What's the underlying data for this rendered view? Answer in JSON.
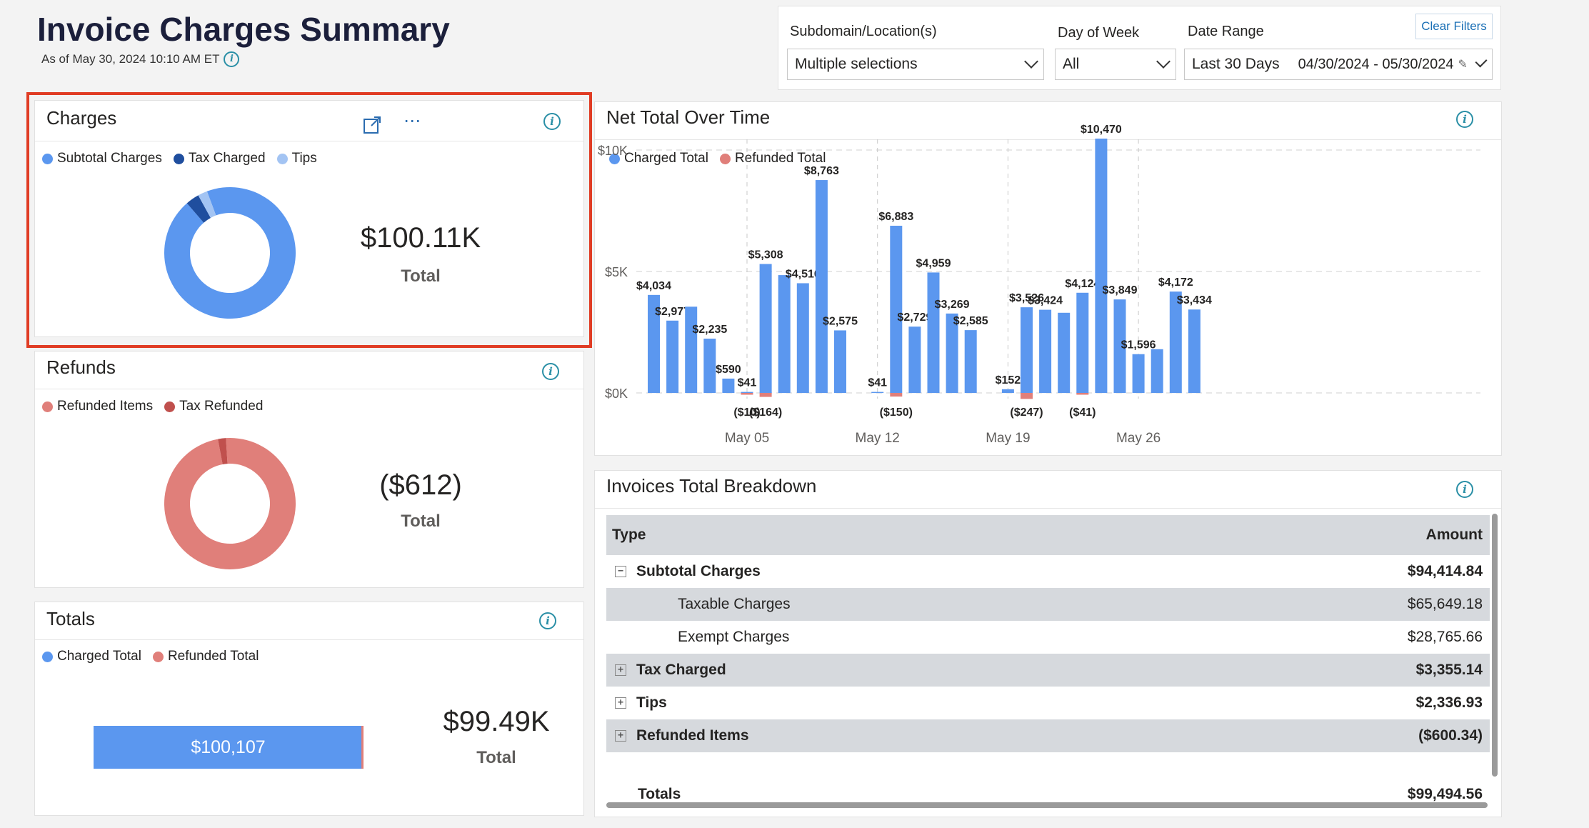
{
  "header": {
    "title": "Invoice Charges Summary",
    "as_of": "As of May 30, 2024 10:10 AM ET"
  },
  "filters": {
    "subdomain_label": "Subdomain/Location(s)",
    "subdomain_value": "Multiple selections",
    "dow_label": "Day of Week",
    "dow_value": "All",
    "date_label": "Date Range",
    "date_preset": "Last 30 Days",
    "date_range": "04/30/2024 - 05/30/2024",
    "clear_label": "Clear Filters"
  },
  "charges_card": {
    "title": "Charges",
    "legend": [
      "Subtotal Charges",
      "Tax Charged",
      "Tips"
    ],
    "value": "$100.11K",
    "value_label": "Total",
    "colors": [
      "#5b97ef",
      "#1f4e9e",
      "#a3c4f3"
    ]
  },
  "refunds_card": {
    "title": "Refunds",
    "legend": [
      "Refunded Items",
      "Tax Refunded"
    ],
    "value": "($612)",
    "value_label": "Total",
    "colors": [
      "#e07f7a",
      "#c0504d"
    ]
  },
  "totals_card": {
    "title": "Totals",
    "legend": [
      "Charged Total",
      "Refunded Total"
    ],
    "bar_label": "$100,107",
    "value": "$99.49K",
    "value_label": "Total"
  },
  "net_total_card": {
    "title": "Net Total Over Time",
    "legend": [
      "Charged Total",
      "Refunded Total"
    ]
  },
  "breakdown": {
    "title": "Invoices Total Breakdown",
    "col_type": "Type",
    "col_amount": "Amount",
    "rows": [
      {
        "label": "Subtotal Charges",
        "amount": "$94,414.84",
        "bold": true,
        "expander": "−",
        "indent": false
      },
      {
        "label": "Taxable Charges",
        "amount": "$65,649.18",
        "bold": false,
        "expander": "",
        "indent": true
      },
      {
        "label": "Exempt Charges",
        "amount": "$28,765.66",
        "bold": false,
        "expander": "",
        "indent": true
      },
      {
        "label": "Tax Charged",
        "amount": "$3,355.14",
        "bold": true,
        "expander": "+",
        "indent": false
      },
      {
        "label": "Tips",
        "amount": "$2,336.93",
        "bold": true,
        "expander": "+",
        "indent": false
      },
      {
        "label": "Refunded Items",
        "amount": "($600.34)",
        "bold": true,
        "expander": "+",
        "indent": false
      }
    ],
    "totals_label": "Totals",
    "totals_amount": "$99,494.56"
  },
  "chart_data": [
    {
      "type": "pie",
      "title": "Charges",
      "labels": [
        "Subtotal Charges",
        "Tax Charged",
        "Tips"
      ],
      "values": [
        94414.84,
        3355.14,
        2336.93
      ],
      "donut": true
    },
    {
      "type": "pie",
      "title": "Refunds",
      "labels": [
        "Refunded Items",
        "Tax Refunded"
      ],
      "values": [
        600.34,
        12.01
      ],
      "donut": true
    },
    {
      "type": "bar",
      "title": "Net Total Over Time",
      "ylabel": "",
      "ylim": [
        -1000,
        11500
      ],
      "yticks": [
        "$0K",
        "$5K",
        "$10K"
      ],
      "xticks": [
        "May 05",
        "May 12",
        "May 19",
        "May 26"
      ],
      "x": [
        "Apr 30",
        "May 01",
        "May 02",
        "May 03",
        "May 04",
        "May 05",
        "May 06",
        "May 07",
        "May 08",
        "May 09",
        "May 10",
        "May 11",
        "May 12",
        "May 13",
        "May 14",
        "May 15",
        "May 16",
        "May 17",
        "May 18",
        "May 19",
        "May 20",
        "May 21",
        "May 22",
        "May 23",
        "May 24",
        "May 25",
        "May 26",
        "May 27",
        "May 28",
        "May 29"
      ],
      "series": [
        {
          "name": "Charged Total",
          "color": "#5b97ef",
          "values": [
            4034,
            2977,
            3550,
            2235,
            590,
            41,
            5308,
            4850,
            4516,
            8763,
            2575,
            0,
            41,
            6883,
            2729,
            4959,
            3269,
            2585,
            0,
            152,
            3526,
            3424,
            3300,
            4124,
            10470,
            3849,
            1596,
            1800,
            4172,
            3434
          ],
          "labels": [
            "$4,034",
            "$2,977",
            "",
            "$2,235",
            "$590",
            "$41",
            "$5,308",
            "",
            "$4,516",
            "$8,763",
            "$2,575",
            "",
            "$41",
            "$6,883",
            "$2,729",
            "$4,959",
            "$3,269",
            "$2,585",
            "",
            "$152",
            "$3,526",
            "$3,424",
            "",
            "$4,124",
            "$10,470",
            "$3,849",
            "$1,596",
            "",
            "$4,172",
            "$3,434"
          ]
        },
        {
          "name": "Refunded Total",
          "color": "#e07f7a",
          "values": [
            0,
            0,
            0,
            0,
            0,
            -10,
            -164,
            0,
            0,
            0,
            0,
            0,
            0,
            -150,
            0,
            0,
            0,
            0,
            0,
            0,
            -247,
            0,
            0,
            -41,
            0,
            0,
            0,
            0,
            0,
            0
          ],
          "labels": [
            "",
            "",
            "",
            "",
            "",
            "($10)",
            "($164)",
            "",
            "",
            "",
            "",
            "",
            "",
            "($150)",
            "",
            "",
            "",
            "",
            "",
            "",
            "($247)",
            "",
            "",
            "($41)",
            "",
            "",
            "",
            "",
            "",
            ""
          ]
        }
      ]
    },
    {
      "type": "bar",
      "title": "Totals",
      "orientation": "horizontal",
      "series": [
        {
          "name": "Charged Total",
          "values": [
            100107
          ]
        },
        {
          "name": "Refunded Total",
          "values": [
            612
          ]
        }
      ]
    }
  ]
}
